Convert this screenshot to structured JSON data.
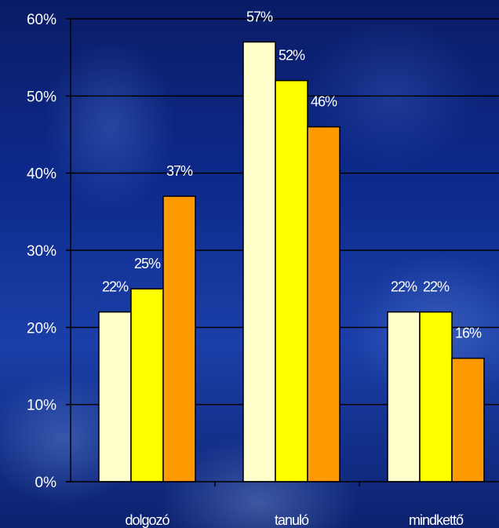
{
  "chart_data": {
    "type": "bar",
    "categories": [
      "dolgozó",
      "tanuló",
      "mindkettő"
    ],
    "series": [
      {
        "values": [
          22,
          57,
          22
        ],
        "color": "#FFFFCC"
      },
      {
        "values": [
          25,
          52,
          22
        ],
        "color": "#FFFF00"
      },
      {
        "values": [
          37,
          46,
          16
        ],
        "color": "#FF9900"
      }
    ],
    "data_labels": [
      [
        "22%",
        "57%",
        "22%"
      ],
      [
        "25%",
        "52%",
        "22%"
      ],
      [
        "37%",
        "46%",
        "16%"
      ]
    ],
    "y_ticks": [
      {
        "value": 0,
        "label": "0%"
      },
      {
        "value": 10,
        "label": "10%"
      },
      {
        "value": 20,
        "label": "20%"
      },
      {
        "value": 30,
        "label": "30%"
      },
      {
        "value": 40,
        "label": "40%"
      },
      {
        "value": 50,
        "label": "50%"
      },
      {
        "value": 60,
        "label": "60%"
      }
    ],
    "ylim": [
      0,
      60
    ],
    "grid": true,
    "legend": "none",
    "title": "",
    "xlabel": "",
    "ylabel": ""
  }
}
